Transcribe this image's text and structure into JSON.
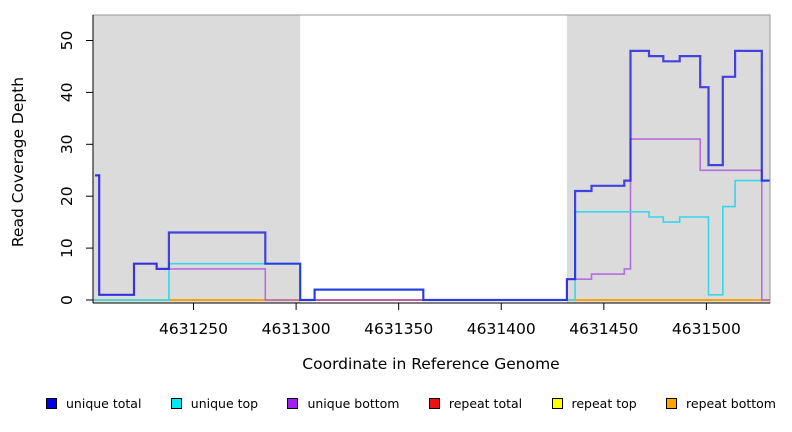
{
  "chart_data": {
    "type": "line",
    "subtype": "step",
    "title": "",
    "xlabel": "Coordinate in Reference Genome",
    "ylabel": "Read Coverage Depth",
    "xlim": [
      4631201,
      4631531
    ],
    "ylim": [
      0,
      52
    ],
    "x_ticks": [
      "4631250",
      "4631300",
      "4631350",
      "4631400",
      "4631450",
      "4631500"
    ],
    "x_tick_values": [
      4631250,
      4631300,
      4631350,
      4631400,
      4631450,
      4631500
    ],
    "y_ticks": [
      "0",
      "10",
      "20",
      "30",
      "40",
      "50"
    ],
    "y_tick_values": [
      0,
      10,
      20,
      30,
      40,
      50
    ],
    "grid": false,
    "legend_position": "bottom",
    "plot_bg": "#ffffff",
    "shaded_regions": [
      {
        "name": "left-repeat-region",
        "start": 4631201,
        "end": 4631302,
        "color": "#dbdbdb"
      },
      {
        "name": "right-repeat-region",
        "start": 4631432,
        "end": 4631531,
        "color": "#dbdbdb"
      }
    ],
    "series": [
      {
        "name": "unique total",
        "color": "#1b1be0",
        "opacity": 0.8,
        "width": 2.2,
        "points": [
          [
            4631202,
            24
          ],
          [
            4631204,
            1
          ],
          [
            4631221,
            7
          ],
          [
            4631232,
            6
          ],
          [
            4631238,
            13
          ],
          [
            4631285,
            7
          ],
          [
            4631302,
            0
          ],
          [
            4631309,
            2
          ],
          [
            4631362,
            0
          ],
          [
            4631432,
            4
          ],
          [
            4631436,
            21
          ],
          [
            4631444,
            22
          ],
          [
            4631460,
            23
          ],
          [
            4631463,
            48
          ],
          [
            4631472,
            47
          ],
          [
            4631479,
            46
          ],
          [
            4631487,
            47
          ],
          [
            4631497,
            41
          ],
          [
            4631501,
            26
          ],
          [
            4631508,
            43
          ],
          [
            4631514,
            48
          ],
          [
            4631527,
            23
          ]
        ]
      },
      {
        "name": "unique top",
        "color": "#35d8ea",
        "opacity": 1,
        "width": 1.6,
        "points": [
          [
            4631201,
            0
          ],
          [
            4631238,
            7
          ],
          [
            4631302,
            0
          ],
          [
            4631309,
            2
          ],
          [
            4631362,
            0
          ],
          [
            4631436,
            17
          ],
          [
            4631472,
            16
          ],
          [
            4631479,
            15
          ],
          [
            4631487,
            16
          ],
          [
            4631501,
            1
          ],
          [
            4631508,
            18
          ],
          [
            4631514,
            23
          ]
        ]
      },
      {
        "name": "unique bottom",
        "color": "#ae63df",
        "opacity": 0.9,
        "width": 1.6,
        "points": [
          [
            4631202,
            24
          ],
          [
            4631204,
            1
          ],
          [
            4631221,
            7
          ],
          [
            4631232,
            6
          ],
          [
            4631285,
            0
          ],
          [
            4631432,
            4
          ],
          [
            4631444,
            5
          ],
          [
            4631460,
            6
          ],
          [
            4631463,
            31
          ],
          [
            4631497,
            25
          ],
          [
            4631527,
            0
          ]
        ]
      },
      {
        "name": "repeat total",
        "color": "#e8232d",
        "opacity": 1,
        "width": 1.6,
        "points": [
          [
            4631201,
            0
          ]
        ]
      },
      {
        "name": "repeat top",
        "color": "#ffff00",
        "opacity": 1,
        "width": 1.6,
        "points": [
          [
            4631201,
            0
          ]
        ]
      },
      {
        "name": "repeat bottom",
        "color": "#ffa500",
        "opacity": 1,
        "width": 1.8,
        "points": [
          [
            4631201,
            0
          ]
        ]
      }
    ],
    "overlap_artifacts": [
      {
        "name": "unique-top-repeat-top-overlap",
        "color": "#8fd89e",
        "y": 0,
        "start": 4631201,
        "end": 4631238
      },
      {
        "name": "repeat-total-visible-segment",
        "color": "#e03a48",
        "y": 0,
        "start": 4631302,
        "end": 4631362
      }
    ]
  },
  "legend": [
    {
      "label": "unique total",
      "color": "#0000e6"
    },
    {
      "label": "unique top",
      "color": "#00e8f0"
    },
    {
      "label": "unique bottom",
      "color": "#a020f0"
    },
    {
      "label": "repeat total",
      "color": "#ee1111"
    },
    {
      "label": "repeat top",
      "color": "#ffff00"
    },
    {
      "label": "repeat bottom",
      "color": "#ffa500"
    }
  ]
}
